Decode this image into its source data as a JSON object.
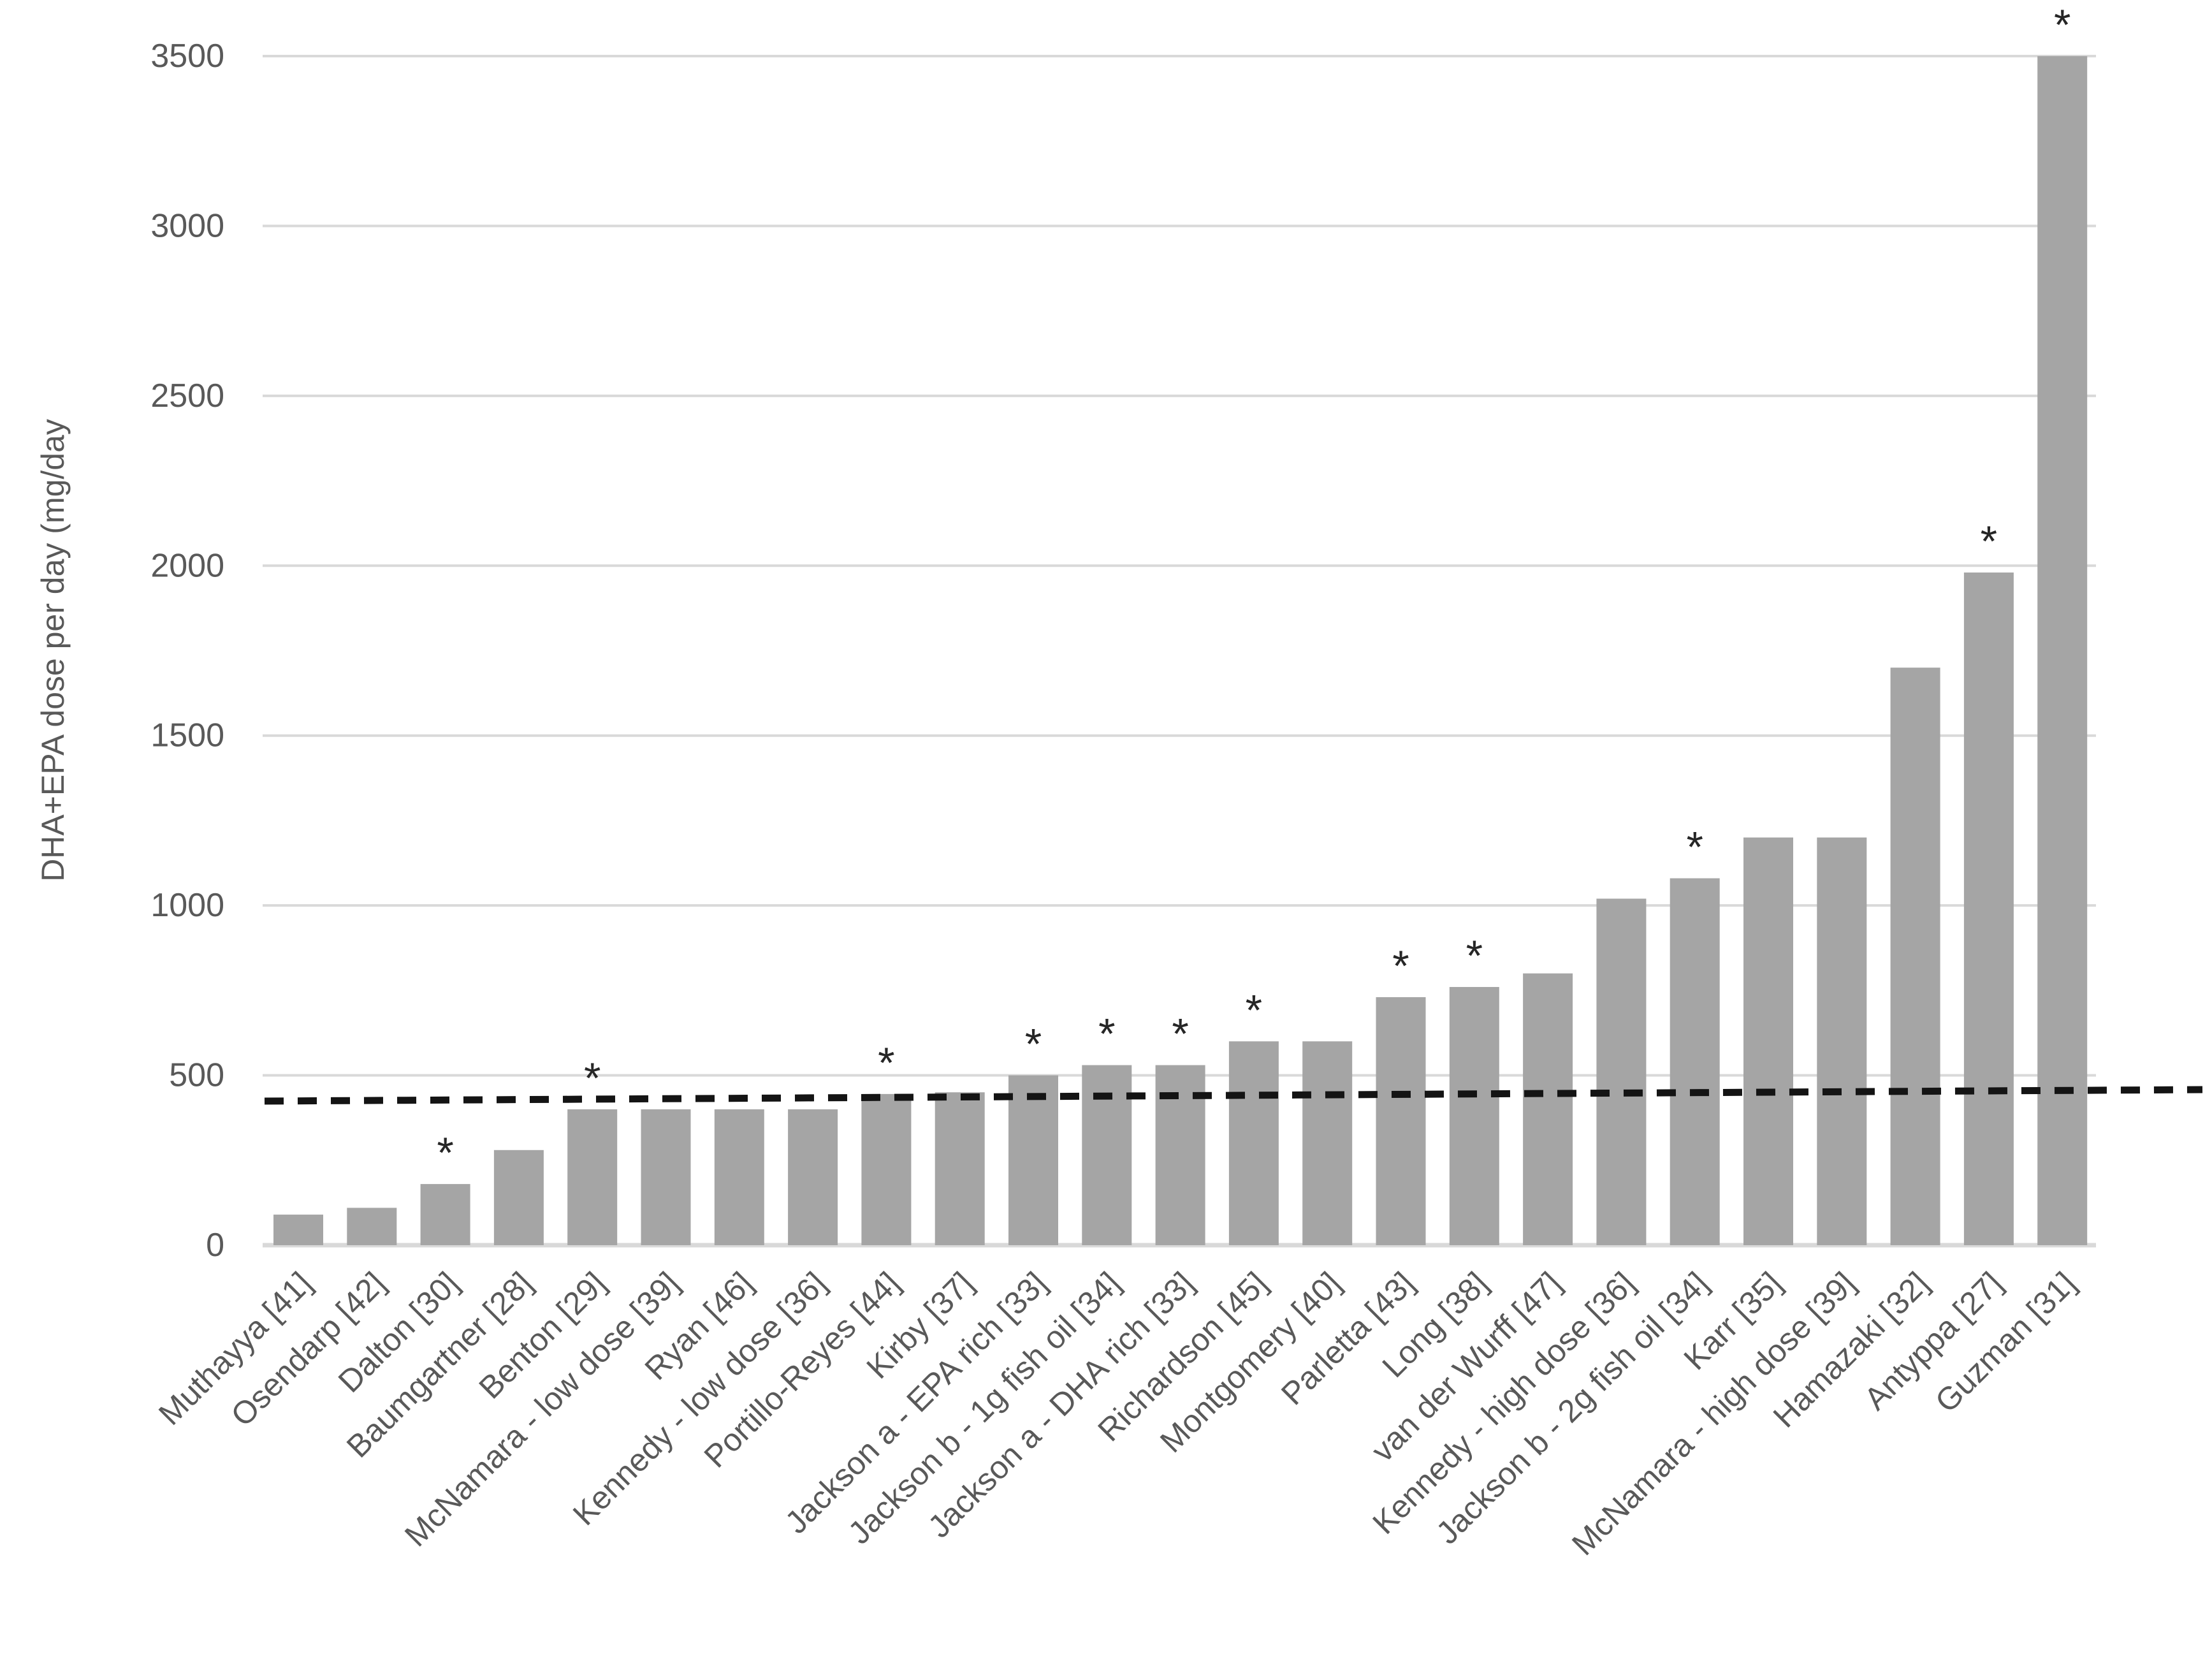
{
  "chart_data": {
    "type": "bar",
    "title": "",
    "ylabel": "DHA+EPA dose per day (mg/day",
    "xlabel": "",
    "ylim": [
      0,
      3500
    ],
    "yticks": [
      0,
      500,
      1000,
      1500,
      2000,
      2500,
      3000,
      3500
    ],
    "grid": "horizontal",
    "legend_position": "none",
    "bar_color": "#a5a5a5",
    "text_color": "#595959",
    "gridline_color": "#d9d9d9",
    "significance_marker": "*",
    "marker_color": "#262626",
    "reference_line": {
      "style": "dashed",
      "color": "#141414",
      "approx_value": 440,
      "value_at_left": 428,
      "value_at_right": 452
    },
    "categories": [
      "Muthayya [41]",
      "Osendarp [42]",
      "Dalton [30]",
      "Baumgartner [28]",
      "Benton [29]",
      "McNamara - low dose [39]",
      "Ryan [46]",
      "Kennedy - low dose [36]",
      "Portillo-Reyes [44]",
      "Kirby [37]",
      "Jackson a - EPA rich [33]",
      "Jackson b - 1g fish oil [34]",
      "Jackson a - DHA rich [33]",
      "Richardson [45]",
      "Montgomery [40]",
      "Parletta [43]",
      "Long [38]",
      "van der Wurff [47]",
      "Kennedy - high dose [36]",
      "Jackson b - 2g fish oil [34]",
      "Karr [35]",
      "McNamara - high dose [39]",
      "Hamazaki [32]",
      "Antyppa [27]",
      "Guzman [31]"
    ],
    "values": [
      90,
      110,
      180,
      280,
      400,
      400,
      400,
      400,
      445,
      450,
      500,
      530,
      530,
      600,
      600,
      730,
      760,
      800,
      1020,
      1080,
      1200,
      1200,
      1700,
      1980,
      3500
    ],
    "starred": [
      false,
      false,
      true,
      false,
      true,
      false,
      false,
      false,
      true,
      false,
      true,
      true,
      true,
      true,
      false,
      true,
      true,
      false,
      false,
      true,
      false,
      false,
      false,
      true,
      true
    ]
  }
}
